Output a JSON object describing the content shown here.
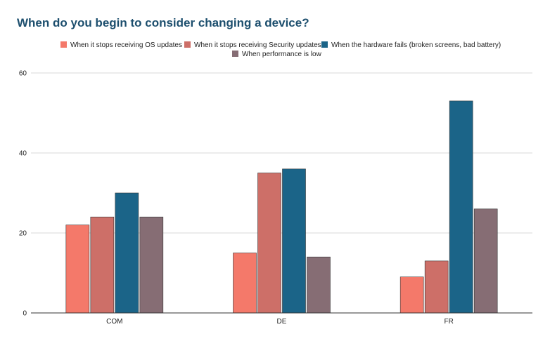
{
  "chart_data": {
    "type": "bar",
    "title": "When do you begin to consider changing a device?",
    "categories": [
      "COM",
      "DE",
      "FR"
    ],
    "series": [
      {
        "name": "When it stops receiving OS updates",
        "color": "#f4796a",
        "values": [
          22,
          15,
          9
        ]
      },
      {
        "name": "When it stops receiving Security updates",
        "color": "#cd6f68",
        "values": [
          24,
          35,
          13
        ]
      },
      {
        "name": "When the hardware fails (broken screens, bad battery)",
        "color": "#1b6488",
        "values": [
          30,
          36,
          53
        ]
      },
      {
        "name": "When performance is low",
        "color": "#866d74",
        "values": [
          24,
          14,
          26
        ]
      }
    ],
    "yticks": [
      "0",
      "20",
      "40",
      "60"
    ],
    "ylim": [
      0,
      60
    ],
    "grid": true,
    "legend_position": "top"
  }
}
